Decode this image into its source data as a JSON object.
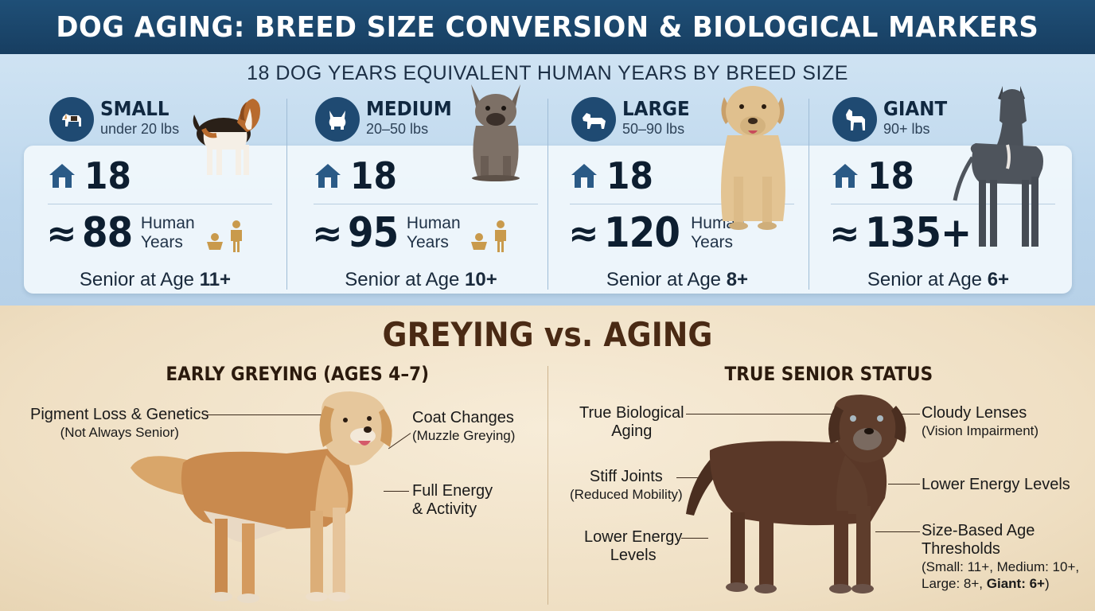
{
  "title": "DOG AGING: BREED SIZE CONVERSION & BIOLOGICAL MARKERS",
  "subtitle": "18 DOG YEARS EQUIVALENT HUMAN YEARS BY BREED SIZE",
  "breeds": [
    {
      "name": "SMALL",
      "weight": "under 20 lbs",
      "dog_years": "18",
      "approx": "≈",
      "human_years": "88",
      "human_label_1": "Human",
      "human_label_2": "Years",
      "senior_prefix": "Senior at Age ",
      "senior_age": "11+",
      "icon": "beagle-icon"
    },
    {
      "name": "MEDIUM",
      "weight": "20–50 lbs",
      "dog_years": "18",
      "approx": "≈",
      "human_years": "95",
      "human_label_1": "Human",
      "human_label_2": "Years",
      "senior_prefix": "Senior at Age ",
      "senior_age": "10+",
      "icon": "french-bulldog-icon"
    },
    {
      "name": "LARGE",
      "weight": "50–90 lbs",
      "dog_years": "18",
      "approx": "≈",
      "human_years": "120",
      "human_label_1": "Human",
      "human_label_2": "Years",
      "senior_prefix": "Senior at Age ",
      "senior_age": "8+",
      "icon": "labrador-icon"
    },
    {
      "name": "GIANT",
      "weight": "90+ lbs",
      "dog_years": "18",
      "approx": "≈",
      "human_years": "135+",
      "senior_prefix": "Senior at Age ",
      "senior_age": "6+",
      "icon": "great-dane-icon"
    }
  ],
  "comparison": {
    "heading": "GREYING vs. AGING",
    "left": {
      "heading": "EARLY GREYING (AGES 4–7)",
      "callouts": [
        {
          "main": "Pigment Loss & Genetics",
          "sub": "(Not Always Senior)"
        },
        {
          "main": "Coat Changes",
          "sub": "(Muzzle Greying)"
        },
        {
          "main": "Full Energy",
          "main2": "& Activity"
        }
      ]
    },
    "right": {
      "heading": "TRUE SENIOR STATUS",
      "callouts": [
        {
          "main": "True Biological",
          "main2": "Aging"
        },
        {
          "main": "Stiff Joints",
          "sub": "(Reduced Mobility)"
        },
        {
          "main": "Lower Energy",
          "main2": "Levels"
        },
        {
          "main": "Cloudy Lenses",
          "sub": "(Vision Impairment)"
        },
        {
          "main": "Lower Energy Levels"
        },
        {
          "main": "Size-Based Age",
          "main2": "Thresholds",
          "sub": "(Small: 11+, Medium: 10+,",
          "sub2a": "Large: 8+, ",
          "sub2b": "Giant: 6+",
          "sub2c": ")"
        }
      ]
    }
  },
  "colors": {
    "title_bar": "#1f4f77",
    "icon_circle": "#1f4a72",
    "house_icon": "#2a5a86",
    "person_icon": "#c99a4c",
    "heading_brown": "#4a2a14"
  }
}
